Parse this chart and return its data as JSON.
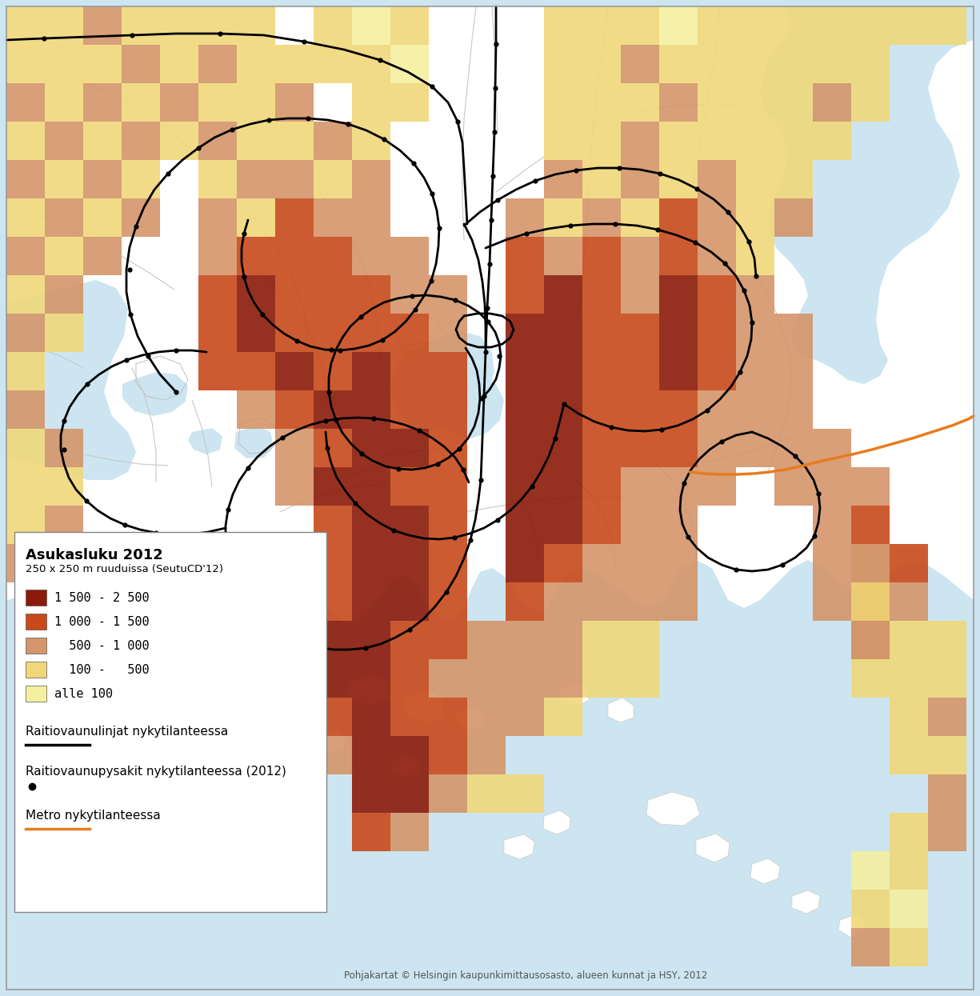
{
  "background_color": "#cce5f0",
  "land_color": "#ffffff",
  "water_color": "#cce5f0",
  "road_color": "#c8c8c8",
  "legend_title": "Asukasluku 2012",
  "legend_subtitle": "250 x 250 m ruuduissa (SeutuCD'12)",
  "legend_items": [
    {
      "label": "1 500 - 2 500",
      "color": "#8b1a0a"
    },
    {
      "label": "1 000 - 1 500",
      "color": "#c8491a"
    },
    {
      "label": "  500 - 1 000",
      "color": "#d4956a"
    },
    {
      "label": "  100 -   500",
      "color": "#f0d87a"
    },
    {
      "label": "alle 100",
      "color": "#f5f0a0"
    }
  ],
  "tram_line_label": "Raitiovaunulinjat nykytilanteessa",
  "tram_stop_label": "Raitiovaunupysakit nykytilanteessa (2012)",
  "metro_label": "Metro nykytilanteessa",
  "tram_color": "#000000",
  "metro_color": "#e87c1e",
  "credit": "Pohjakartat © Helsingin kaupunkimittausosasto, alueen kunnat ja HSY, 2012",
  "border_color": "#999999"
}
